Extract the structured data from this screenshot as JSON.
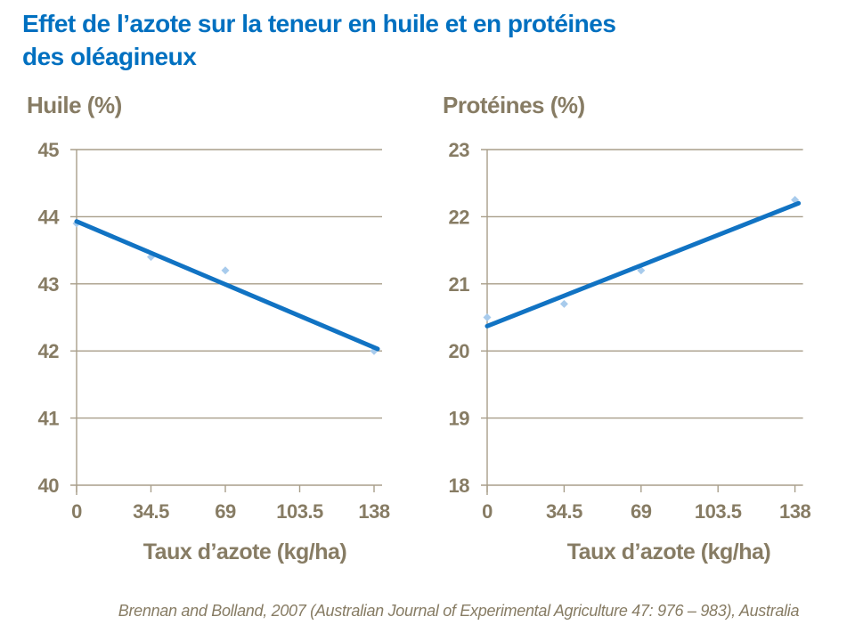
{
  "slide": {
    "title_line1": "Effet de l’azote sur la teneur en huile et en protéines",
    "title_line2": "des oléagineux",
    "source": "Brennan and Bolland, 2007 (Australian Journal of Experimental Agriculture 47: 976 – 983), Australia"
  },
  "colors": {
    "title_blue": "#0070C0",
    "trend_line_blue": "#1173C3",
    "marker_light_blue": "#A8CBEC",
    "axis_text_brown": "#877C64",
    "gridline_tan": "#A89E8A"
  },
  "chart_data": [
    {
      "type": "scatter",
      "title": "Huile (%)",
      "xlabel": "Taux d’azote (kg/ha)",
      "x": [
        0,
        34.5,
        69,
        103.5,
        138
      ],
      "x_tick_labels": [
        "0",
        "34.5",
        "69",
        "103.5",
        "138"
      ],
      "y_ticks": [
        45,
        44,
        43,
        42,
        41,
        40
      ],
      "ylim": [
        40,
        45
      ],
      "xlim": [
        0,
        138
      ],
      "grid": true,
      "legend": false,
      "points": [
        [
          0,
          43.9
        ],
        [
          34.5,
          43.4
        ],
        [
          69,
          43.2
        ],
        [
          138,
          42.0
        ]
      ],
      "trendline": {
        "start": [
          0,
          43.93
        ],
        "end": [
          138,
          42.03
        ]
      }
    },
    {
      "type": "scatter",
      "title": "Protéines (%)",
      "xlabel": "Taux d’azote (kg/ha)",
      "x": [
        0,
        34.5,
        69,
        103.5,
        138
      ],
      "x_tick_labels": [
        "0",
        "34.5",
        "69",
        "103.5",
        "138"
      ],
      "y_ticks": [
        23,
        22,
        21,
        20,
        19,
        18
      ],
      "ylim": [
        18,
        23
      ],
      "xlim": [
        0,
        138
      ],
      "grid": true,
      "legend": false,
      "points": [
        [
          0,
          20.5
        ],
        [
          34.5,
          20.7
        ],
        [
          69,
          21.2
        ],
        [
          138,
          22.25
        ]
      ],
      "trendline": {
        "start": [
          0,
          20.37
        ],
        "end": [
          138,
          22.2
        ]
      }
    }
  ]
}
